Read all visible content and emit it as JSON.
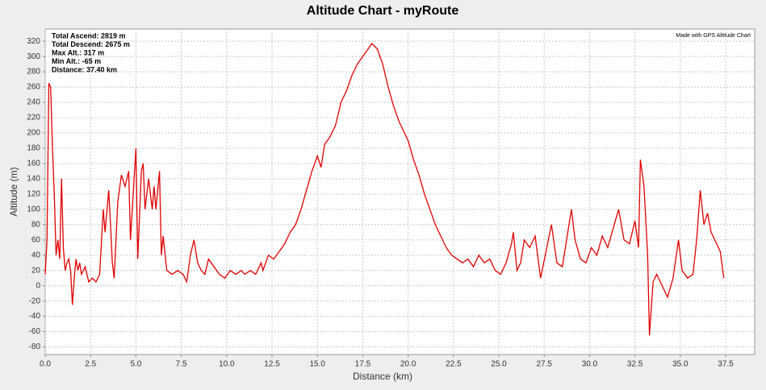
{
  "chart_data": {
    "type": "line",
    "title": "Altitude Chart - myRoute",
    "x_label": "Distance (km)",
    "y_label": "Altitude (m)",
    "annotations": [
      "Total Ascend: 2819 m",
      "Total Descend: 2675 m",
      "Max Alt.: 317 m",
      "Min Alt.: -65 m",
      "Distance: 37.40 km"
    ],
    "credit": "Made with GPS Altitude Chart",
    "grid": true,
    "xlim": [
      0,
      39.1
    ],
    "ylim": [
      -90,
      336
    ],
    "xticks": [
      {
        "value": 0,
        "label": "0.0"
      },
      2.5,
      {
        "value": 5,
        "label": "5.0"
      },
      7.5,
      {
        "value": 10,
        "label": "10.0"
      },
      12.5,
      {
        "value": 15,
        "label": "15.0"
      },
      17.5,
      {
        "value": 20,
        "label": "20.0"
      },
      22.5,
      {
        "value": 25,
        "label": "25.0"
      },
      27.5,
      {
        "value": 30,
        "label": "30.0"
      },
      32.5,
      {
        "value": 35,
        "label": "35.0"
      },
      37.5
    ],
    "yticks": [
      -80,
      -60,
      -40,
      -20,
      0,
      20,
      40,
      60,
      80,
      100,
      120,
      140,
      160,
      180,
      200,
      220,
      240,
      260,
      280,
      300,
      320
    ],
    "series": [
      {
        "name": "Altitude",
        "color": "#e00000",
        "x": [
          0.0,
          0.1,
          0.2,
          0.3,
          0.4,
          0.5,
          0.6,
          0.7,
          0.8,
          0.9,
          1.0,
          1.1,
          1.2,
          1.3,
          1.4,
          1.5,
          1.6,
          1.7,
          1.8,
          1.9,
          2.0,
          2.2,
          2.4,
          2.6,
          2.8,
          3.0,
          3.2,
          3.3,
          3.5,
          3.6,
          3.7,
          3.8,
          4.0,
          4.2,
          4.4,
          4.6,
          4.7,
          4.9,
          5.0,
          5.1,
          5.3,
          5.4,
          5.5,
          5.7,
          5.9,
          6.0,
          6.1,
          6.3,
          6.4,
          6.5,
          6.7,
          7.0,
          7.3,
          7.6,
          7.8,
          8.0,
          8.2,
          8.4,
          8.6,
          8.8,
          9.0,
          9.3,
          9.6,
          9.9,
          10.2,
          10.5,
          10.8,
          11.0,
          11.3,
          11.6,
          11.9,
          12.0,
          12.3,
          12.6,
          12.9,
          13.2,
          13.5,
          13.8,
          14.1,
          14.4,
          14.7,
          15.0,
          15.2,
          15.4,
          15.7,
          16.0,
          16.3,
          16.6,
          16.9,
          17.2,
          17.5,
          17.8,
          18.0,
          18.3,
          18.6,
          18.9,
          19.2,
          19.5,
          19.8,
          20.0,
          20.3,
          20.6,
          20.9,
          21.2,
          21.5,
          21.8,
          22.1,
          22.4,
          22.7,
          23.0,
          23.3,
          23.6,
          23.9,
          24.2,
          24.5,
          24.8,
          25.1,
          25.4,
          25.7,
          25.8,
          26.0,
          26.2,
          26.4,
          26.7,
          27.0,
          27.3,
          27.6,
          27.9,
          28.2,
          28.5,
          28.8,
          29.0,
          29.2,
          29.5,
          29.8,
          30.1,
          30.4,
          30.7,
          31.0,
          31.3,
          31.6,
          31.9,
          32.2,
          32.5,
          32.7,
          32.8,
          33.0,
          33.2,
          33.3,
          33.5,
          33.7,
          34.0,
          34.3,
          34.6,
          34.9,
          35.1,
          35.4,
          35.7,
          35.9,
          36.1,
          36.3,
          36.5,
          36.7,
          37.0,
          37.2,
          37.4
        ],
        "values": [
          15,
          60,
          265,
          260,
          180,
          120,
          40,
          60,
          35,
          140,
          50,
          20,
          30,
          35,
          20,
          -25,
          10,
          35,
          20,
          30,
          15,
          25,
          5,
          10,
          5,
          15,
          100,
          70,
          125,
          80,
          30,
          10,
          110,
          145,
          130,
          150,
          60,
          140,
          180,
          35,
          150,
          160,
          100,
          140,
          100,
          130,
          100,
          150,
          40,
          65,
          20,
          15,
          20,
          15,
          5,
          40,
          60,
          30,
          20,
          15,
          35,
          25,
          15,
          10,
          20,
          15,
          20,
          15,
          20,
          15,
          30,
          20,
          40,
          35,
          45,
          55,
          70,
          80,
          100,
          125,
          150,
          170,
          155,
          185,
          195,
          210,
          240,
          255,
          275,
          290,
          300,
          310,
          317,
          310,
          290,
          260,
          235,
          215,
          200,
          190,
          165,
          145,
          120,
          100,
          80,
          65,
          50,
          40,
          35,
          30,
          35,
          25,
          40,
          30,
          35,
          20,
          15,
          30,
          55,
          70,
          20,
          30,
          60,
          50,
          65,
          10,
          45,
          80,
          30,
          25,
          70,
          100,
          60,
          35,
          30,
          50,
          40,
          65,
          50,
          75,
          100,
          60,
          55,
          85,
          50,
          165,
          130,
          40,
          -65,
          5,
          15,
          0,
          -15,
          10,
          60,
          20,
          10,
          15,
          60,
          125,
          80,
          95,
          70,
          55,
          45,
          10
        ]
      }
    ]
  }
}
